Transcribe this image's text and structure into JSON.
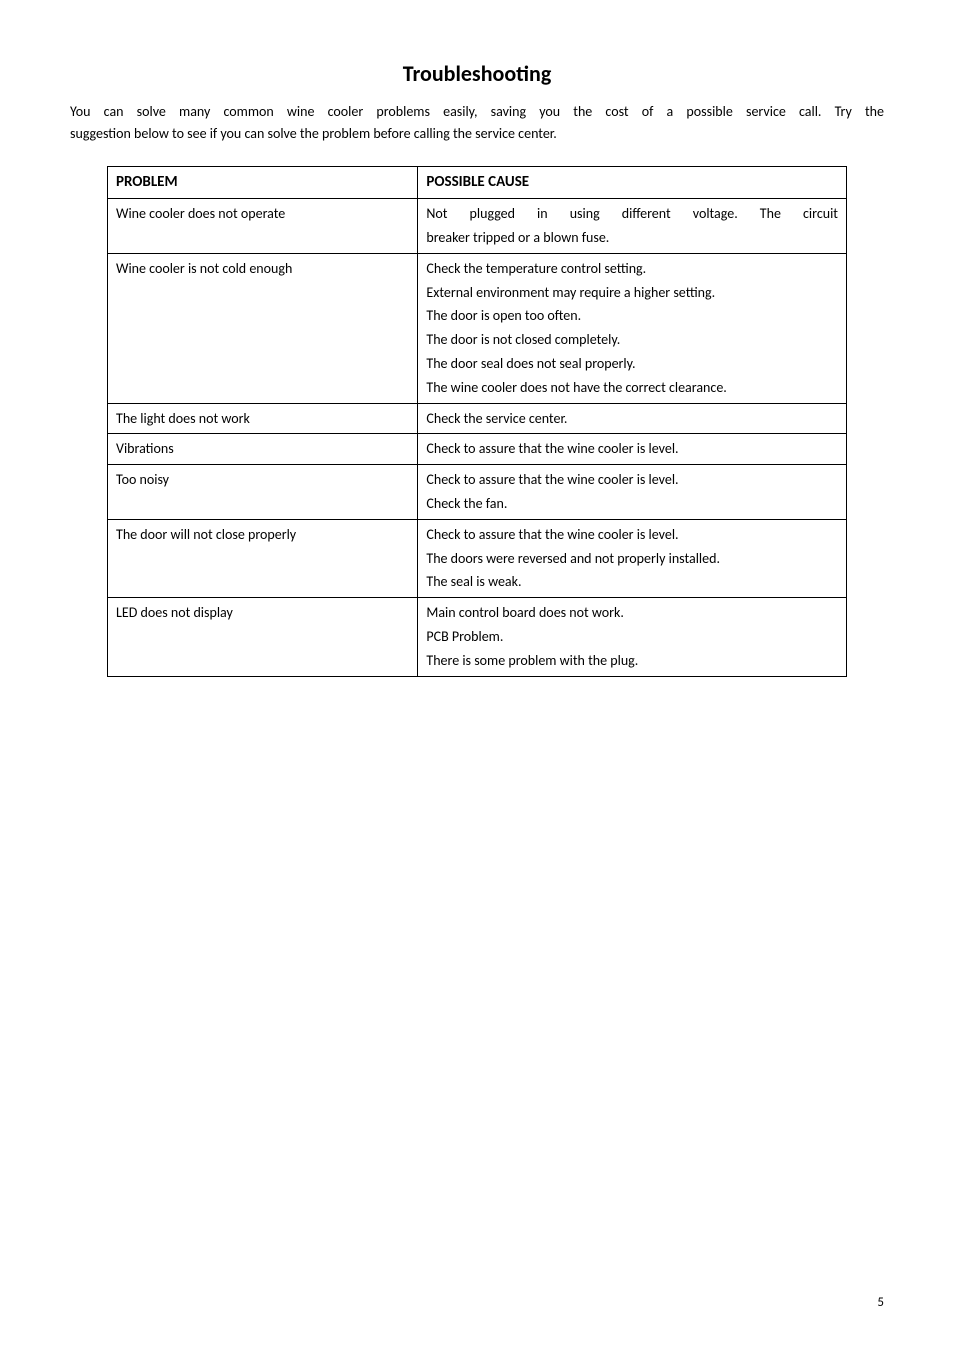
{
  "title": "Troubleshooting",
  "intro_line1": "You can solve many common wine cooler problems easily, saving you the cost of a possible service call. Try the",
  "intro_line2": "suggestion below to see if you can solve the problem before calling the service center.",
  "headers": {
    "problem": "PROBLEM",
    "cause": "POSSIBLE CAUSE"
  },
  "rows": [
    {
      "problem": "Wine cooler does not operate",
      "causes": [
        "Not plugged in using different voltage. The circuit",
        "breaker tripped or a blown fuse."
      ],
      "tall": false,
      "justify_first": true
    },
    {
      "problem": "Wine cooler is not cold enough",
      "causes": [
        "Check the temperature control setting.",
        "External environment may require a higher setting.",
        "The door is open too often.",
        "The door is not closed completely.",
        "The door seal does not seal properly.",
        "The wine cooler does not have the correct clearance."
      ],
      "tall": true,
      "justify_first": false
    },
    {
      "problem": "The light does not work",
      "causes": [
        "Check the service center."
      ],
      "tall": false,
      "justify_first": false
    },
    {
      "problem": "Vibrations",
      "causes": [
        "Check to assure that the wine cooler is level."
      ],
      "tall": false,
      "justify_first": false
    },
    {
      "problem": "Too noisy",
      "causes": [
        "Check to assure that the wine cooler is level.",
        "Check the fan."
      ],
      "tall": false,
      "justify_first": false
    },
    {
      "problem": "The door will not close properly",
      "causes": [
        "Check to assure that the wine cooler is level.",
        "The doors were reversed and not properly installed.",
        "The seal is weak."
      ],
      "tall": false,
      "justify_first": false
    },
    {
      "problem": "LED does not display",
      "causes": [
        "Main control board does not work.",
        "PCB Problem.",
        "There is some problem with the plug."
      ],
      "tall": false,
      "justify_first": false
    }
  ],
  "page_number": "5"
}
